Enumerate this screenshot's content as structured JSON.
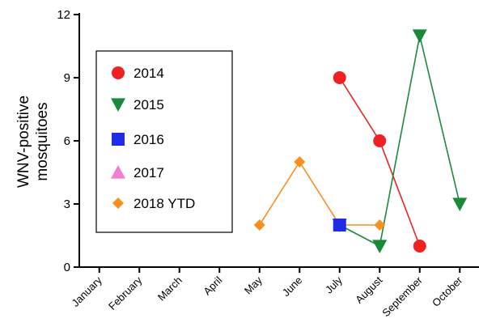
{
  "chart_data": {
    "type": "line",
    "title": "",
    "xlabel": "",
    "ylabel_lines": [
      "WNV-positive",
      "mosquitoes"
    ],
    "categories": [
      "January",
      "February",
      "March",
      "April",
      "May",
      "June",
      "July",
      "August",
      "September",
      "October"
    ],
    "ylim": [
      0,
      12
    ],
    "yticks": [
      0,
      3,
      6,
      9,
      12
    ],
    "grid": false,
    "legend_position": "top-left",
    "series": [
      {
        "name": "2014",
        "color": "#ee2222",
        "marker": "circle",
        "line": true,
        "points": [
          {
            "x": "July",
            "y": 9
          },
          {
            "x": "August",
            "y": 6
          },
          {
            "x": "September",
            "y": 1
          }
        ]
      },
      {
        "name": "2015",
        "color": "#1a8a3a",
        "marker": "triangle-down",
        "line": true,
        "points": [
          {
            "x": "July",
            "y": 2
          },
          {
            "x": "August",
            "y": 1
          },
          {
            "x": "September",
            "y": 11
          },
          {
            "x": "October",
            "y": 3
          }
        ]
      },
      {
        "name": "2016",
        "color": "#1f2ee6",
        "marker": "square",
        "line": false,
        "points": [
          {
            "x": "July",
            "y": 2
          }
        ]
      },
      {
        "name": "2017",
        "color": "#f07ed6",
        "marker": "triangle-up",
        "line": false,
        "points": []
      },
      {
        "name": "2018 YTD",
        "color": "#f7901e",
        "marker": "diamond",
        "line": true,
        "points": [
          {
            "x": "May",
            "y": 2
          },
          {
            "x": "June",
            "y": 5
          },
          {
            "x": "July",
            "y": 2
          },
          {
            "x": "August",
            "y": 2
          }
        ]
      }
    ]
  }
}
